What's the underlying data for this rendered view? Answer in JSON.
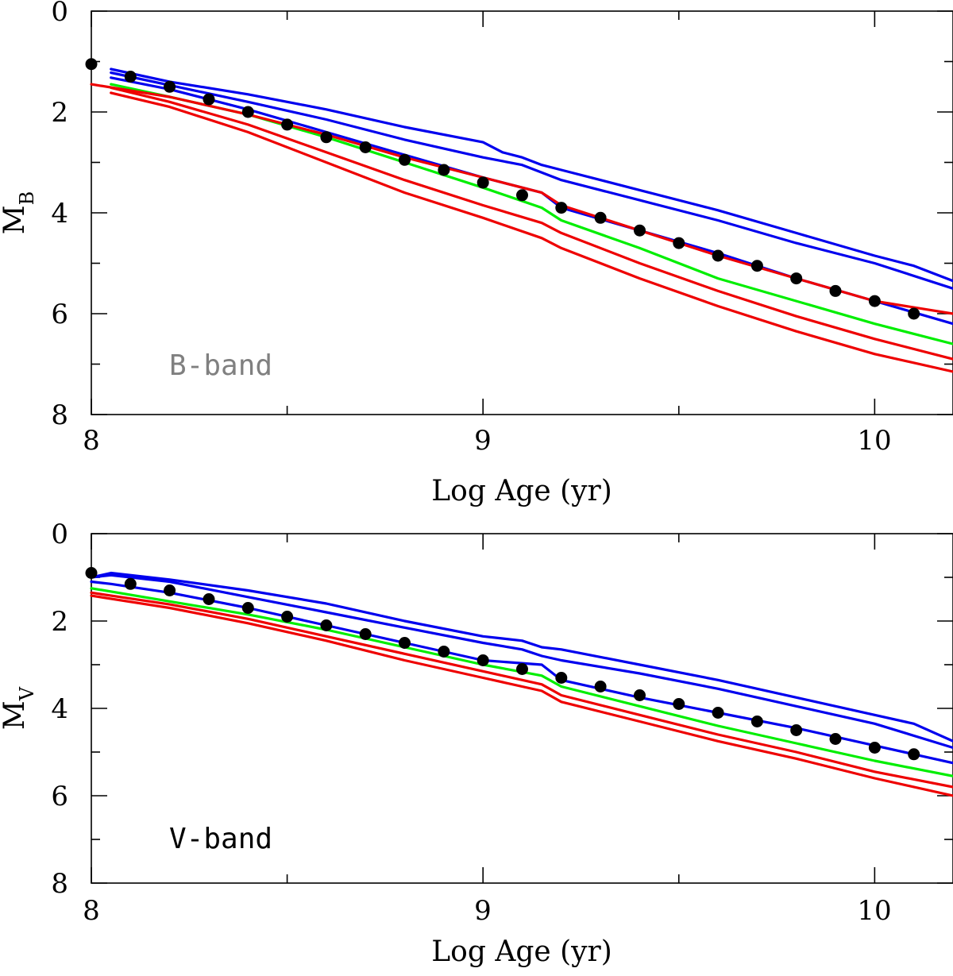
{
  "chart_data": [
    {
      "type": "line",
      "band_label": "B-band",
      "band_label_color": "#808080",
      "xlabel": "Log Age (yr)",
      "ylabel": "M",
      "ylabel_sub": "B",
      "xlim": [
        8.0,
        10.2
      ],
      "ylim": [
        8,
        0
      ],
      "y_inverted": true,
      "x_ticks": [
        8,
        9,
        10
      ],
      "x_tick_labels": [
        "8",
        "9",
        "10"
      ],
      "y_ticks": [
        0,
        2,
        4,
        6,
        8
      ],
      "y_tick_labels": [
        "0",
        "2",
        "4",
        "6",
        "8"
      ],
      "x_minor_step": 0.5,
      "y_minor_step": 1,
      "grid": false,
      "series": [
        {
          "color": "#0000ee",
          "x": [
            8.05,
            8.2,
            8.4,
            8.6,
            8.8,
            9.0,
            9.05,
            9.1,
            9.15,
            9.2,
            9.4,
            9.6,
            9.8,
            10.0,
            10.1,
            10.2
          ],
          "y": [
            1.15,
            1.4,
            1.65,
            1.95,
            2.3,
            2.6,
            2.8,
            2.9,
            3.05,
            3.15,
            3.55,
            3.95,
            4.4,
            4.85,
            5.05,
            5.35
          ]
        },
        {
          "color": "#0000ee",
          "x": [
            8.05,
            8.2,
            8.4,
            8.6,
            8.8,
            9.0,
            9.1,
            9.15,
            9.2,
            9.4,
            9.6,
            9.8,
            10.0,
            10.2
          ],
          "y": [
            1.22,
            1.47,
            1.8,
            2.15,
            2.55,
            2.9,
            3.05,
            3.2,
            3.35,
            3.75,
            4.15,
            4.6,
            5.0,
            5.5
          ]
        },
        {
          "color": "#0000ee",
          "x": [
            8.05,
            8.2,
            8.4,
            8.6,
            8.8,
            9.0,
            9.15,
            9.2,
            9.4,
            9.6,
            9.8,
            10.0,
            10.2
          ],
          "y": [
            1.32,
            1.55,
            1.95,
            2.4,
            2.85,
            3.3,
            3.6,
            3.9,
            4.35,
            4.8,
            5.3,
            5.75,
            6.2
          ]
        },
        {
          "color": "#00ee00",
          "x": [
            8.05,
            8.2,
            8.4,
            8.6,
            8.8,
            9.0,
            9.15,
            9.2,
            9.4,
            9.6,
            9.8,
            10.0,
            10.2
          ],
          "y": [
            1.45,
            1.7,
            2.05,
            2.5,
            3.0,
            3.5,
            3.9,
            4.15,
            4.7,
            5.3,
            5.75,
            6.2,
            6.6
          ]
        },
        {
          "color": "#ee0000",
          "x": [
            8.0,
            8.2,
            8.4,
            8.6,
            8.8,
            9.0,
            9.15,
            9.2,
            9.4,
            9.6,
            9.8,
            10.0,
            10.2
          ],
          "y": [
            1.45,
            1.7,
            2.05,
            2.45,
            2.9,
            3.3,
            3.6,
            3.85,
            4.35,
            4.85,
            5.3,
            5.75,
            6.0
          ]
        },
        {
          "color": "#ee0000",
          "x": [
            8.05,
            8.2,
            8.4,
            8.6,
            8.8,
            9.0,
            9.15,
            9.2,
            9.4,
            9.6,
            9.8,
            10.0,
            10.2
          ],
          "y": [
            1.52,
            1.8,
            2.25,
            2.8,
            3.35,
            3.85,
            4.2,
            4.4,
            5.0,
            5.55,
            6.05,
            6.5,
            6.9
          ]
        },
        {
          "color": "#ee0000",
          "x": [
            8.05,
            8.2,
            8.4,
            8.6,
            8.8,
            9.0,
            9.15,
            9.2,
            9.4,
            9.6,
            9.8,
            10.0,
            10.2
          ],
          "y": [
            1.62,
            1.9,
            2.4,
            3.0,
            3.6,
            4.1,
            4.5,
            4.7,
            5.3,
            5.85,
            6.35,
            6.8,
            7.15
          ]
        }
      ],
      "points": {
        "color": "#000000",
        "x": [
          8.0,
          8.1,
          8.2,
          8.3,
          8.4,
          8.5,
          8.6,
          8.7,
          8.8,
          8.9,
          9.0,
          9.1,
          9.2,
          9.3,
          9.4,
          9.5,
          9.6,
          9.7,
          9.8,
          9.9,
          10.0,
          10.1
        ],
        "y": [
          1.05,
          1.3,
          1.5,
          1.75,
          2.0,
          2.25,
          2.5,
          2.7,
          2.95,
          3.15,
          3.4,
          3.65,
          3.9,
          4.1,
          4.35,
          4.6,
          4.85,
          5.05,
          5.3,
          5.55,
          5.75,
          6.0
        ]
      }
    },
    {
      "type": "line",
      "band_label": "V-band",
      "band_label_color": "#000000",
      "xlabel": "Log Age (yr)",
      "ylabel": "M",
      "ylabel_sub": "V",
      "xlim": [
        8.0,
        10.2
      ],
      "ylim": [
        8,
        0
      ],
      "y_inverted": true,
      "x_ticks": [
        8,
        9,
        10
      ],
      "x_tick_labels": [
        "8",
        "9",
        "10"
      ],
      "y_ticks": [
        0,
        2,
        4,
        6,
        8
      ],
      "y_tick_labels": [
        "0",
        "2",
        "4",
        "6",
        "8"
      ],
      "x_minor_step": 0.5,
      "y_minor_step": 1,
      "grid": false,
      "series": [
        {
          "color": "#0000ee",
          "x": [
            8.0,
            8.05,
            8.2,
            8.4,
            8.6,
            8.8,
            9.0,
            9.05,
            9.1,
            9.15,
            9.2,
            9.4,
            9.6,
            9.8,
            10.0,
            10.1,
            10.2
          ],
          "y": [
            1.0,
            0.9,
            1.05,
            1.3,
            1.6,
            2.0,
            2.35,
            2.4,
            2.45,
            2.6,
            2.65,
            3.0,
            3.35,
            3.75,
            4.15,
            4.35,
            4.75
          ]
        },
        {
          "color": "#0000ee",
          "x": [
            8.0,
            8.05,
            8.2,
            8.4,
            8.6,
            8.8,
            9.0,
            9.1,
            9.15,
            9.2,
            9.4,
            9.6,
            9.8,
            10.0,
            10.2
          ],
          "y": [
            1.0,
            0.95,
            1.1,
            1.45,
            1.8,
            2.15,
            2.5,
            2.65,
            2.8,
            2.9,
            3.2,
            3.55,
            3.95,
            4.35,
            4.9
          ]
        },
        {
          "color": "#0000ee",
          "x": [
            8.0,
            8.05,
            8.2,
            8.4,
            8.6,
            8.8,
            9.0,
            9.15,
            9.2,
            9.4,
            9.6,
            9.8,
            10.0,
            10.2
          ],
          "y": [
            1.1,
            1.15,
            1.35,
            1.7,
            2.1,
            2.5,
            2.9,
            3.0,
            3.35,
            3.75,
            4.1,
            4.45,
            4.85,
            5.25
          ]
        },
        {
          "color": "#00ee00",
          "x": [
            8.0,
            8.2,
            8.4,
            8.6,
            8.8,
            9.0,
            9.15,
            9.2,
            9.4,
            9.6,
            9.8,
            10.0,
            10.2
          ],
          "y": [
            1.25,
            1.55,
            1.85,
            2.2,
            2.6,
            3.0,
            3.25,
            3.5,
            3.95,
            4.4,
            4.8,
            5.2,
            5.55
          ]
        },
        {
          "color": "#ee0000",
          "x": [
            8.0,
            8.2,
            8.4,
            8.6,
            8.8,
            9.0,
            9.15,
            9.2,
            9.4,
            9.6,
            9.8,
            10.0,
            10.2
          ],
          "y": [
            1.35,
            1.62,
            1.95,
            2.35,
            2.75,
            3.15,
            3.45,
            3.7,
            4.15,
            4.6,
            5.0,
            5.45,
            5.8
          ]
        },
        {
          "color": "#ee0000",
          "x": [
            8.0,
            8.2,
            8.4,
            8.6,
            8.8,
            9.0,
            9.15,
            9.2,
            9.4,
            9.6,
            9.8,
            10.0,
            10.2
          ],
          "y": [
            1.42,
            1.7,
            2.05,
            2.45,
            2.9,
            3.3,
            3.6,
            3.85,
            4.3,
            4.75,
            5.15,
            5.6,
            6.0
          ]
        }
      ],
      "points": {
        "color": "#000000",
        "x": [
          8.0,
          8.1,
          8.2,
          8.3,
          8.4,
          8.5,
          8.6,
          8.7,
          8.8,
          8.9,
          9.0,
          9.1,
          9.2,
          9.3,
          9.4,
          9.5,
          9.6,
          9.7,
          9.8,
          9.9,
          10.0,
          10.1
        ],
        "y": [
          0.9,
          1.15,
          1.3,
          1.5,
          1.7,
          1.9,
          2.1,
          2.3,
          2.5,
          2.7,
          2.9,
          3.1,
          3.3,
          3.5,
          3.7,
          3.9,
          4.1,
          4.3,
          4.5,
          4.7,
          4.9,
          5.05
        ]
      }
    }
  ]
}
